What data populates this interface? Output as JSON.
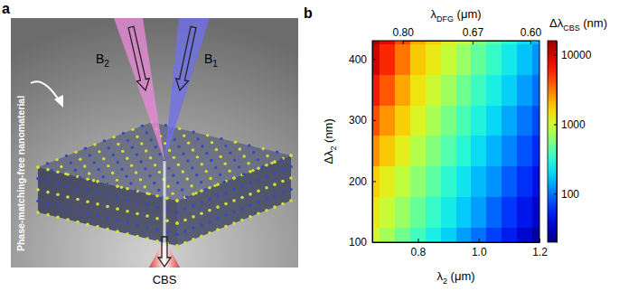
{
  "chart_data": {
    "type": "heatmap",
    "panel_label": "b",
    "x_label": {
      "main": "λ",
      "sub": "2",
      "rest": " (μm)"
    },
    "y_label": {
      "main": "Δλ",
      "sub": "2",
      "rest": " (nm)"
    },
    "x2_label": {
      "main": "λ",
      "sub": "DFG",
      "rest": " (μm)"
    },
    "x": [
      0.65,
      0.7,
      0.75,
      0.8,
      0.85,
      0.9,
      0.95,
      1,
      1.05,
      1.1,
      1.15,
      1.2
    ],
    "y": [
      100,
      150,
      200,
      250,
      300,
      350,
      400,
      450
    ],
    "z": [
      [
        1000,
        720,
        510,
        370,
        260,
        190,
        130,
        97,
        69,
        50,
        35,
        25
      ],
      [
        1300,
        930,
        670,
        480,
        340,
        250,
        180,
        130,
        90,
        64,
        46,
        33
      ],
      [
        1700,
        1200,
        870,
        620,
        450,
        320,
        230,
        160,
        120,
        84,
        60,
        43
      ],
      [
        2700,
        1800,
        1200,
        810,
        580,
        420,
        300,
        210,
        150,
        110,
        78,
        56
      ],
      [
        4200,
        2600,
        1700,
        1100,
        760,
        540,
        390,
        280,
        200,
        140,
        100,
        73
      ],
      [
        6500,
        3900,
        2300,
        1400,
        980,
        700,
        500,
        360,
        260,
        190,
        130,
        95
      ],
      [
        10000,
        5700,
        3200,
        1800,
        1300,
        920,
        660,
        470,
        340,
        240,
        170,
        120
      ],
      [
        16000,
        8400,
        4400,
        2300,
        1700,
        1200,
        850,
        610,
        440,
        310,
        220,
        160
      ]
    ],
    "xlim": [
      0.65,
      1.2
    ],
    "xticks": [
      0.8,
      {
        "value": 1,
        "label": "1.0"
      },
      1.2
    ],
    "ylim": [
      100,
      430
    ],
    "yticks": [
      100,
      200,
      300,
      400
    ],
    "x2ticks": [
      {
        "value": 0.8,
        "label": "0.80"
      },
      {
        "value": 0.67,
        "label": "0.67"
      },
      {
        "value": 0.6,
        "label": "0.60"
      }
    ],
    "x2_at_x": [
      0.75,
      0.98,
      1.17
    ],
    "colorbar": {
      "label": {
        "main": "Δλ",
        "sub": "CBS",
        "rest": " (nm)"
      },
      "range": [
        20,
        16000
      ],
      "ticks": [
        100,
        1000,
        10000
      ],
      "log": true
    }
  },
  "diagram": {
    "panel_label": "a",
    "beams": [
      {
        "main": "B",
        "sub": "2"
      },
      {
        "main": "B",
        "sub": "1"
      }
    ],
    "material": "Phase-matching-free nanomaterial",
    "output": "CBS"
  }
}
